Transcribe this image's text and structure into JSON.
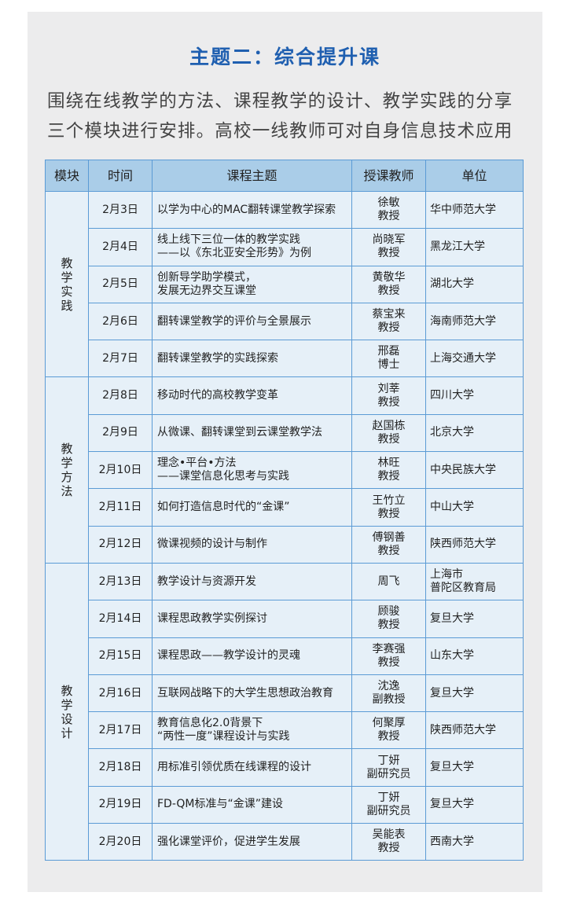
{
  "header": {
    "title": "主题二：综合提升课",
    "intro": [
      "围绕在线教学的方法、课程教学的设计、教学实践的分享",
      "三个模块进行安排。高校一线教师可对自身信息技术应用"
    ]
  },
  "table": {
    "columns": [
      "模块",
      "时间",
      "课程主题",
      "授课教师",
      "单位"
    ],
    "groups": [
      {
        "module": "教学实践",
        "rows": [
          [
            "2月3日",
            "以学为中心的MAC翻转课堂教学探索",
            "徐敏\n教授",
            "华中师范大学"
          ],
          [
            "2月4日",
            "线上线下三位一体的教学实践\n——以《东北亚安全形势》为例",
            "尚晓军\n教授",
            "黑龙江大学"
          ],
          [
            "2月5日",
            "创新导学助学模式，\n发展无边界交互课堂",
            "黄敬华\n教授",
            "湖北大学"
          ],
          [
            "2月6日",
            "翻转课堂教学的评价与全景展示",
            "蔡宝来\n教授",
            "海南师范大学"
          ],
          [
            "2月7日",
            "翻转课堂教学的实践探索",
            "邢磊\n博士",
            "上海交通大学"
          ]
        ]
      },
      {
        "module": "教学方法",
        "rows": [
          [
            "2月8日",
            "移动时代的高校教学变革",
            "刘莘\n教授",
            "四川大学"
          ],
          [
            "2月9日",
            "从微课、翻转课堂到云课堂教学法",
            "赵国栋\n教授",
            "北京大学"
          ],
          [
            "2月10日",
            "理念•平台•方法\n——课堂信息化思考与实践",
            "林旺\n教授",
            "中央民族大学"
          ],
          [
            "2月11日",
            "如何打造信息时代的“金课”",
            "王竹立\n教授",
            "中山大学"
          ],
          [
            "2月12日",
            "微课视频的设计与制作",
            "傅钢善\n教授",
            "陕西师范大学"
          ]
        ]
      },
      {
        "module": "教学设计",
        "rows": [
          [
            "2月13日",
            "教学设计与资源开发",
            "周飞",
            "上海市\n普陀区教育局"
          ],
          [
            "2月14日",
            "课程思政教学实例探讨",
            "顾骏\n教授",
            "复旦大学"
          ],
          [
            "2月15日",
            "课程思政——教学设计的灵魂",
            "李赛强\n教授",
            "山东大学"
          ],
          [
            "2月16日",
            "互联网战略下的大学生思想政治教育",
            "沈逸\n副教授",
            "复旦大学"
          ],
          [
            "2月17日",
            "教育信息化2.0背景下\n“两性一度”课程设计与实践",
            "何聚厚\n教授",
            "陕西师范大学"
          ],
          [
            "2月18日",
            "用标准引领优质在线课程的设计",
            "丁妍\n副研究员",
            "复旦大学"
          ],
          [
            "2月19日",
            "FD-QM标准与“金课”建设",
            "丁妍\n副研究员",
            "复旦大学"
          ],
          [
            "2月20日",
            "强化课堂评价，促进学生发展",
            "吴能表\n教授",
            "西南大学"
          ]
        ]
      }
    ]
  }
}
